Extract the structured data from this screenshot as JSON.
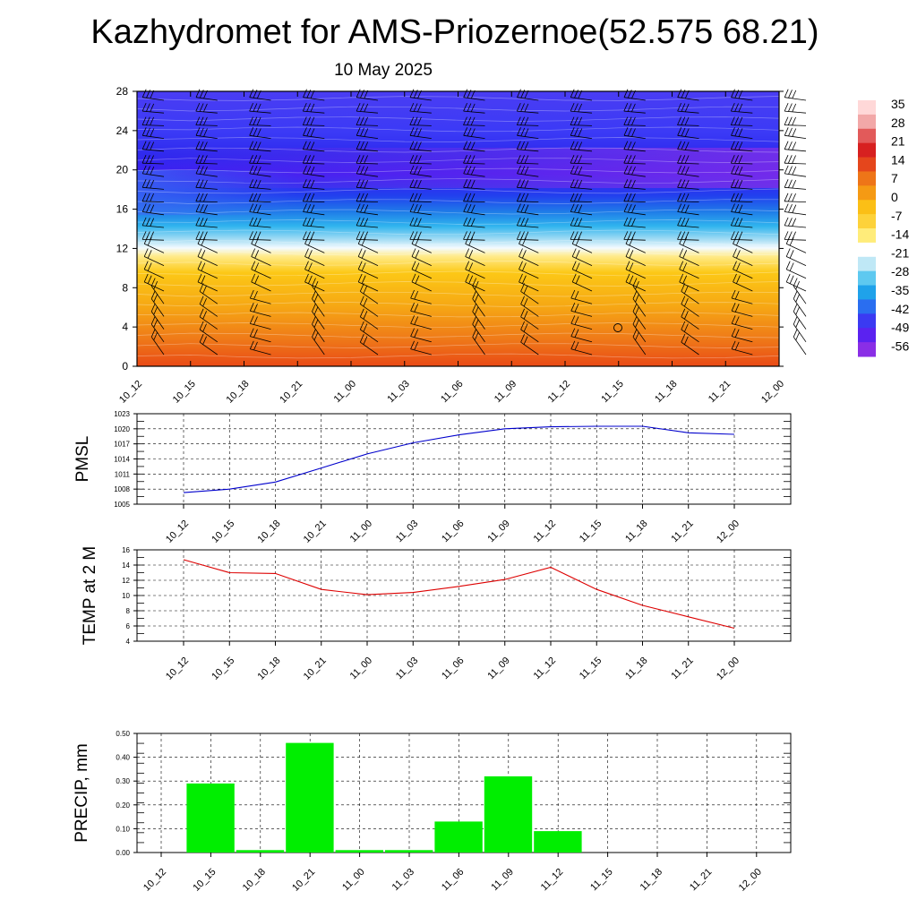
{
  "title": "Kazhydromet for AMS-Priozernoe(52.575 68.21)",
  "subtitle": "10 May 2025",
  "time_labels": [
    "10_12",
    "10_15",
    "10_18",
    "10_21",
    "11_00",
    "11_03",
    "11_06",
    "11_09",
    "11_12",
    "11_15",
    "11_18",
    "11_21",
    "12_00"
  ],
  "chart_data": [
    {
      "type": "heatmap",
      "name": "cross-section",
      "x": [
        "10_12",
        "10_15",
        "10_18",
        "10_21",
        "11_00",
        "11_03",
        "11_06",
        "11_09",
        "11_12",
        "11_15",
        "11_18",
        "11_21",
        "12_00"
      ],
      "ylim": [
        0,
        28
      ],
      "yticks": [
        0,
        4,
        8,
        12,
        16,
        20,
        24,
        28
      ],
      "grid": false,
      "colorbar": {
        "labels": [
          35,
          28,
          21,
          14,
          7,
          0,
          -7,
          -14,
          -21,
          -28,
          -35,
          -42,
          -49,
          -56
        ],
        "colors": [
          "#ffd8d8",
          "#f2a8a8",
          "#e25a5a",
          "#d72020",
          "#e5461c",
          "#ee7518",
          "#f59a14",
          "#fbbf16",
          "#fdd23a",
          "#ffec7a",
          "#ffffff",
          "#bfe8f6",
          "#5ec9f0",
          "#1fa2ea",
          "#2a6ef0",
          "#3b3af2",
          "#5b22f0",
          "#8a2ee6"
        ],
        "placement": "right"
      }
    },
    {
      "type": "line",
      "ylabel": "PMSL",
      "x": [
        "10_12",
        "10_15",
        "10_18",
        "10_21",
        "11_00",
        "11_03",
        "11_06",
        "11_09",
        "11_12",
        "11_15",
        "11_18",
        "11_21",
        "12_00"
      ],
      "series": [
        {
          "values": [
            1007.3,
            1008.0,
            1009.4,
            1012.2,
            1015.0,
            1017.2,
            1018.8,
            1020.0,
            1020.4,
            1020.5,
            1020.5,
            1019.2,
            1018.9
          ],
          "color": "#0000cc"
        }
      ],
      "ylim": [
        1005,
        1023
      ],
      "yticks": [
        1005,
        1008,
        1011,
        1014,
        1017,
        1020,
        1023
      ],
      "grid": true
    },
    {
      "type": "line",
      "ylabel": "TEMP at 2 M",
      "x": [
        "10_12",
        "10_15",
        "10_18",
        "10_21",
        "11_00",
        "11_03",
        "11_06",
        "11_09",
        "11_12",
        "11_15",
        "11_18",
        "11_21",
        "12_00"
      ],
      "series": [
        {
          "values": [
            14.7,
            13.0,
            12.9,
            10.8,
            10.1,
            10.4,
            11.2,
            12.1,
            13.7,
            10.8,
            8.7,
            7.2,
            5.7
          ],
          "color": "#dd0000"
        }
      ],
      "ylim": [
        4,
        16
      ],
      "yticks": [
        4,
        6,
        8,
        10,
        12,
        14,
        16
      ],
      "grid": true
    },
    {
      "type": "bar",
      "ylabel": "PRECIP, mm",
      "categories": [
        "10_12",
        "10_15",
        "10_18",
        "10_21",
        "11_00",
        "11_03",
        "11_06",
        "11_09",
        "11_12",
        "11_15",
        "11_18",
        "11_21",
        "12_00"
      ],
      "values": [
        0,
        0.29,
        0.01,
        0.46,
        0.01,
        0.01,
        0.13,
        0.32,
        0.09,
        0,
        0,
        0,
        0
      ],
      "ylim": [
        0,
        0.5
      ],
      "yticks": [
        "0.00",
        "0.10",
        "0.20",
        "0.30",
        "0.40",
        "0.50"
      ],
      "bar_color": "#00ee00",
      "grid": true
    }
  ]
}
